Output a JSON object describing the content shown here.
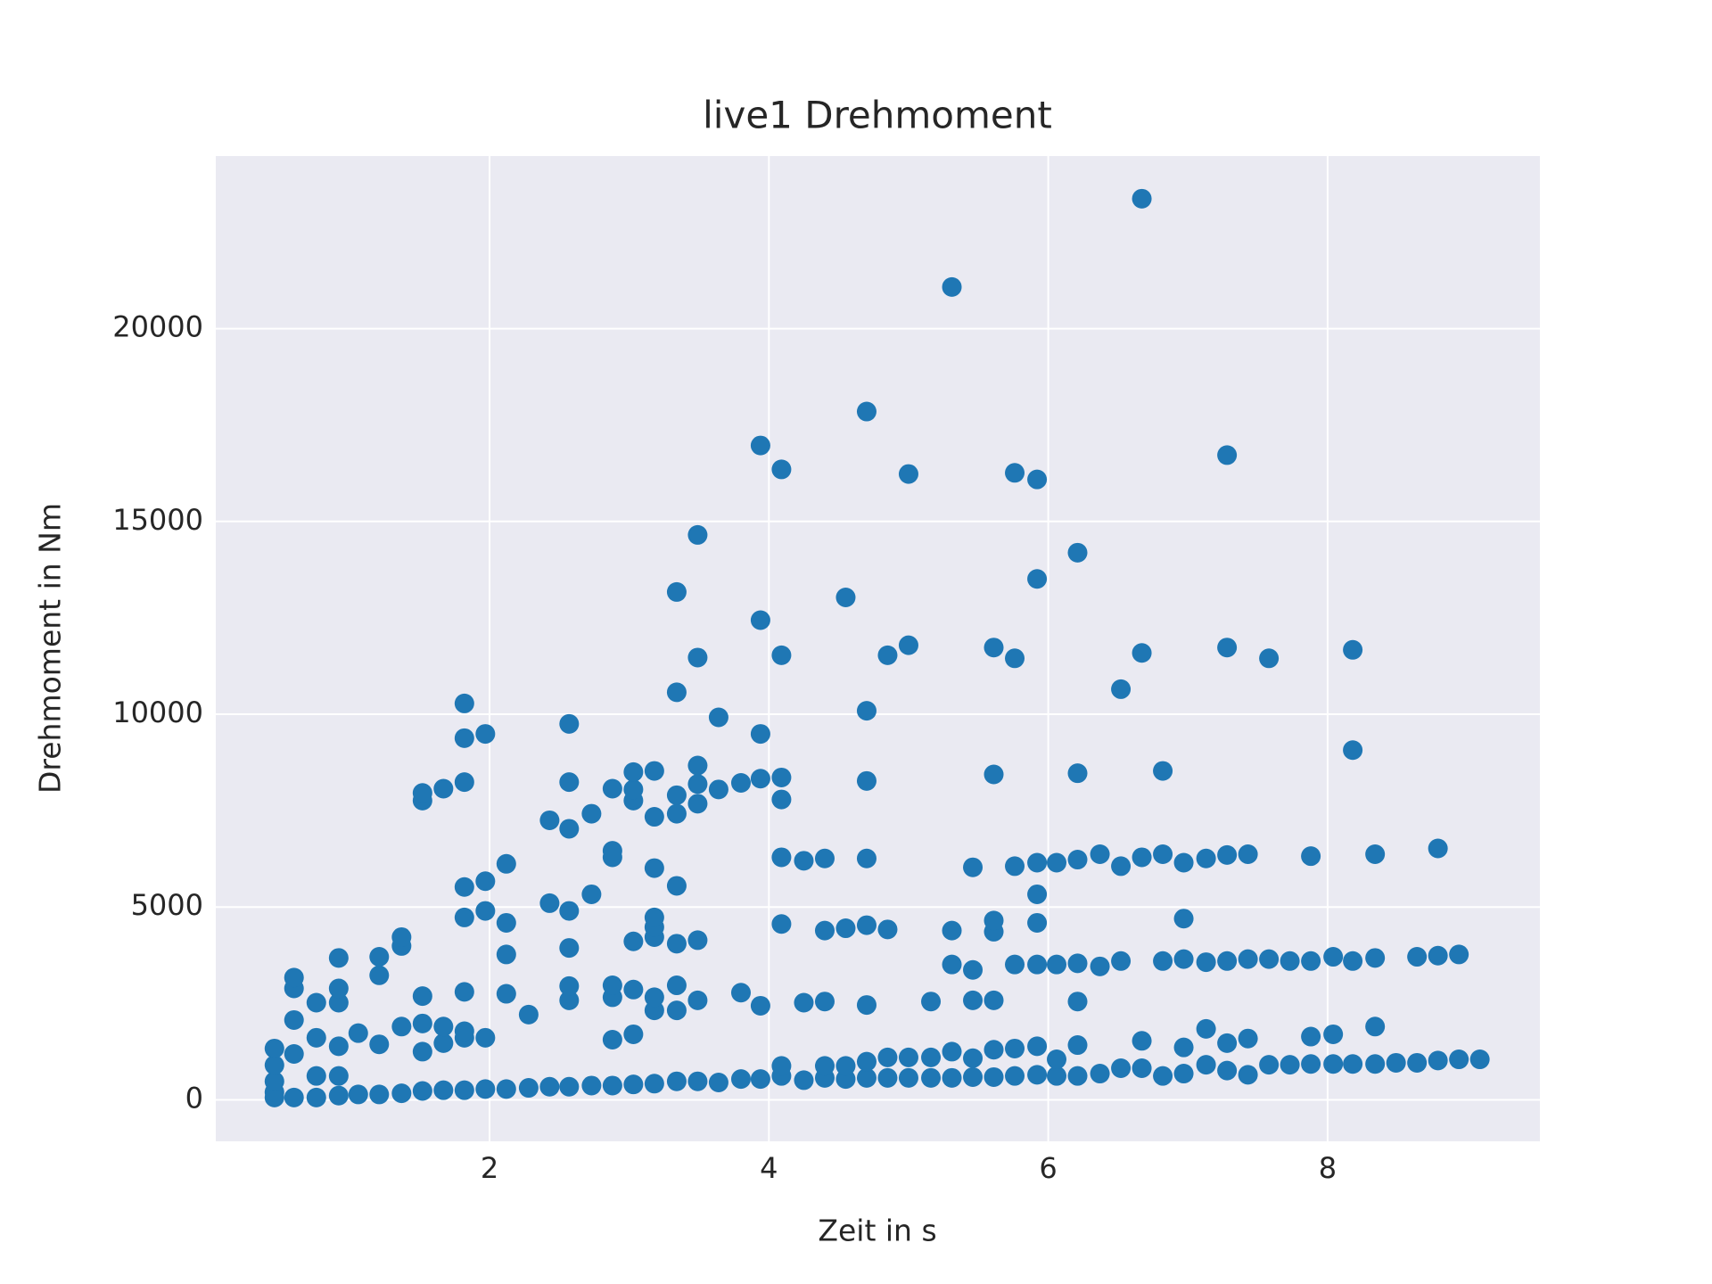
{
  "chart_data": {
    "type": "scatter",
    "title": "live1 Drehmoment",
    "x_label": "Zeit in s",
    "y_label": "Drehmoment in Nm",
    "color": "#1f77b4",
    "grid": true,
    "xlim": [
      0.04,
      9.52
    ],
    "ylim": [
      -1076,
      24476
    ],
    "xticks": [
      2,
      4,
      6,
      8
    ],
    "yticks": [
      0,
      5000,
      10000,
      15000,
      20000
    ],
    "x": [
      0.46,
      0.46,
      0.46,
      0.46,
      0.46,
      0.6,
      0.6,
      0.6,
      0.6,
      0.6,
      0.76,
      0.76,
      0.76,
      0.76,
      0.92,
      0.92,
      0.92,
      0.92,
      0.92,
      0.92,
      1.06,
      1.06,
      1.21,
      1.21,
      1.21,
      1.21,
      1.37,
      1.37,
      1.37,
      1.37,
      1.52,
      1.52,
      1.52,
      1.52,
      1.52,
      1.52,
      1.67,
      1.67,
      1.67,
      1.67,
      1.82,
      1.82,
      1.82,
      1.82,
      1.82,
      1.82,
      1.82,
      1.82,
      1.82,
      1.97,
      1.97,
      1.97,
      1.97,
      1.97,
      2.12,
      2.12,
      2.12,
      2.12,
      2.12,
      2.28,
      2.28,
      2.43,
      2.43,
      2.43,
      2.57,
      2.57,
      2.57,
      2.57,
      2.57,
      2.57,
      2.57,
      2.57,
      2.73,
      2.73,
      2.73,
      2.88,
      2.88,
      2.88,
      2.88,
      2.88,
      2.88,
      2.88,
      3.03,
      3.03,
      3.03,
      3.03,
      3.03,
      3.03,
      3.03,
      3.18,
      3.18,
      3.18,
      3.18,
      3.18,
      3.18,
      3.18,
      3.18,
      3.18,
      3.34,
      3.34,
      3.34,
      3.34,
      3.34,
      3.34,
      3.34,
      3.34,
      3.34,
      3.49,
      3.49,
      3.49,
      3.49,
      3.49,
      3.49,
      3.49,
      3.49,
      3.64,
      3.64,
      3.64,
      3.8,
      3.8,
      3.8,
      3.94,
      3.94,
      3.94,
      3.94,
      3.94,
      3.94,
      4.09,
      4.09,
      4.09,
      4.09,
      4.09,
      4.09,
      4.09,
      4.09,
      4.25,
      4.25,
      4.25,
      4.4,
      4.4,
      4.4,
      4.4,
      4.4,
      4.55,
      4.55,
      4.55,
      4.55,
      4.7,
      4.7,
      4.7,
      4.7,
      4.7,
      4.7,
      4.7,
      4.7,
      4.85,
      4.85,
      4.85,
      4.85,
      5.0,
      5.0,
      5.0,
      5.0,
      5.16,
      5.16,
      5.16,
      5.31,
      5.31,
      5.31,
      5.31,
      5.31,
      5.46,
      5.46,
      5.46,
      5.46,
      5.46,
      5.61,
      5.61,
      5.61,
      5.61,
      5.61,
      5.61,
      5.61,
      5.76,
      5.76,
      5.76,
      5.76,
      5.76,
      5.76,
      5.92,
      5.92,
      5.92,
      5.92,
      5.92,
      5.92,
      5.92,
      5.92,
      6.06,
      6.06,
      6.06,
      6.06,
      6.21,
      6.21,
      6.21,
      6.21,
      6.21,
      6.21,
      6.21,
      6.37,
      6.37,
      6.37,
      6.52,
      6.52,
      6.52,
      6.52,
      6.67,
      6.67,
      6.67,
      6.67,
      6.67,
      6.82,
      6.82,
      6.82,
      6.82,
      6.97,
      6.97,
      6.97,
      6.97,
      6.97,
      7.13,
      7.13,
      7.13,
      7.13,
      7.28,
      7.28,
      7.28,
      7.28,
      7.28,
      7.28,
      7.43,
      7.43,
      7.43,
      7.43,
      7.58,
      7.58,
      7.58,
      7.73,
      7.73,
      7.88,
      7.88,
      7.88,
      7.88,
      8.04,
      8.04,
      8.04,
      8.18,
      8.18,
      8.18,
      8.18,
      8.34,
      8.34,
      8.34,
      8.34,
      8.49,
      8.64,
      8.64,
      8.79,
      8.79,
      8.79,
      8.94,
      8.94,
      9.09
    ],
    "values": [
      60,
      200,
      480,
      900,
      1330,
      60,
      1190,
      2070,
      2890,
      3170,
      60,
      620,
      1610,
      2520,
      110,
      620,
      1390,
      2520,
      2890,
      3680,
      140,
      1730,
      140,
      1440,
      3230,
      3710,
      170,
      1900,
      3990,
      4220,
      230,
      1250,
      1980,
      2690,
      7760,
      7960,
      250,
      1470,
      1900,
      8070,
      250,
      1610,
      1780,
      2800,
      4730,
      5520,
      8240,
      9380,
      10280,
      280,
      1610,
      4900,
      5670,
      9490,
      280,
      2750,
      3770,
      4590,
      6120,
      310,
      2210,
      340,
      5100,
      7250,
      340,
      2580,
      2950,
      3940,
      4900,
      7030,
      8240,
      9750,
      370,
      5330,
      7420,
      370,
      1560,
      2660,
      2970,
      6290,
      6460,
      8070,
      400,
      1700,
      2860,
      4110,
      7760,
      8050,
      8500,
      420,
      2320,
      2660,
      4220,
      4480,
      4730,
      6010,
      7340,
      8530,
      480,
      2320,
      2970,
      4050,
      5550,
      7420,
      7900,
      10570,
      13170,
      480,
      2580,
      4140,
      7680,
      8190,
      8670,
      11470,
      14650,
      450,
      8050,
      9920,
      540,
      2780,
      8220,
      540,
      2440,
      8330,
      9490,
      12440,
      16970,
      620,
      880,
      4560,
      6290,
      7790,
      8360,
      11530,
      16350,
      510,
      2520,
      6200,
      570,
      880,
      2550,
      4390,
      6260,
      540,
      880,
      4450,
      13030,
      570,
      990,
      2460,
      4530,
      6260,
      8270,
      10090,
      17850,
      570,
      1100,
      4420,
      11530,
      570,
      1100,
      11790,
      16230,
      570,
      1100,
      2550,
      570,
      1250,
      3510,
      4390,
      21080,
      590,
      1080,
      2580,
      3370,
      6030,
      590,
      1300,
      2580,
      4360,
      4650,
      8440,
      11730,
      620,
      1330,
      3510,
      6060,
      11450,
      16260,
      650,
      1390,
      3510,
      4590,
      5330,
      6150,
      13510,
      16090,
      620,
      1050,
      3510,
      6150,
      620,
      1420,
      2550,
      3540,
      6230,
      8470,
      14190,
      680,
      3460,
      6370,
      820,
      3600,
      6060,
      10650,
      820,
      1530,
      6290,
      11590,
      23370,
      620,
      3600,
      6370,
      8530,
      680,
      1360,
      3650,
      4700,
      6150,
      910,
      1840,
      3570,
      6260,
      760,
      1470,
      3600,
      6350,
      11730,
      16720,
      650,
      1590,
      3650,
      6370,
      910,
      3650,
      11450,
      910,
      3600,
      930,
      1640,
      3600,
      6320,
      930,
      1700,
      3710,
      930,
      3600,
      9070,
      11670,
      930,
      1900,
      3680,
      6370,
      960,
      960,
      3710,
      1020,
      3740,
      6520,
      1050,
      3770,
      1050
    ]
  }
}
